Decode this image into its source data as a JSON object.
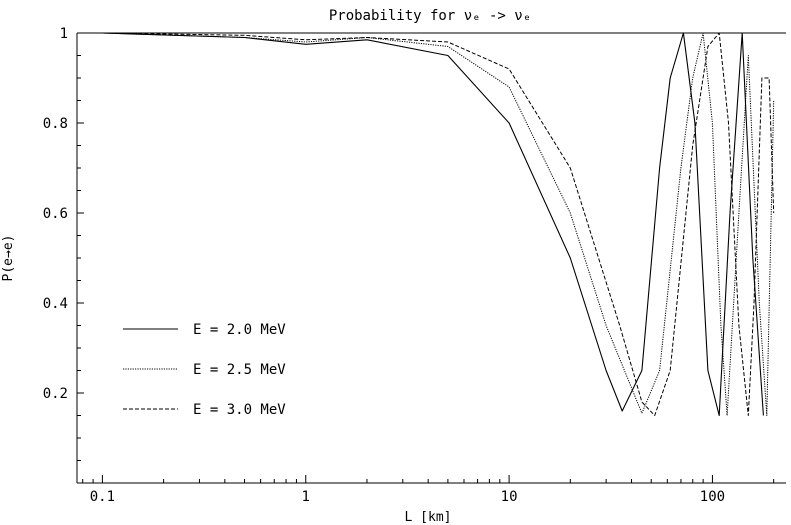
{
  "chart_data": {
    "type": "line",
    "title": "Probability for νₑ -> νₑ",
    "xlabel": "L [km]",
    "ylabel": "P(e→e)",
    "xscale": "log",
    "xlim": [
      0.075,
      230
    ],
    "ylim": [
      0.0,
      1.0
    ],
    "xticks": [
      0.1,
      1,
      10,
      100
    ],
    "xtick_labels": [
      "0.1",
      "1",
      "10",
      "100"
    ],
    "yticks": [
      0.2,
      0.4,
      0.6,
      0.8,
      1.0
    ],
    "ytick_labels": [
      "0.2",
      "0.4",
      "0.6",
      "0.8",
      "1"
    ],
    "grid": false,
    "legend_position": "lower-left",
    "series": [
      {
        "name": "E = 2.0 MeV",
        "energy_MeV": 2.0,
        "style": "solid",
        "x": [
          0.1,
          0.5,
          1.0,
          2.0,
          5.0,
          10.0,
          20.0,
          30.0,
          36.0,
          45.0,
          55.0,
          62.0,
          72.0,
          82.0,
          95.0,
          108.0,
          122.0,
          140.0,
          158.0,
          178.0
        ],
        "y": [
          1.0,
          0.99,
          0.975,
          0.985,
          0.95,
          0.8,
          0.5,
          0.25,
          0.16,
          0.25,
          0.7,
          0.9,
          1.0,
          0.8,
          0.25,
          0.15,
          0.6,
          1.0,
          0.5,
          0.15
        ]
      },
      {
        "name": "E = 2.5 MeV",
        "energy_MeV": 2.5,
        "style": "dotted",
        "x": [
          0.1,
          0.5,
          1.0,
          2.0,
          5.0,
          10.0,
          20.0,
          30.0,
          45.0,
          55.0,
          70.0,
          80.0,
          90.0,
          100.0,
          110.0,
          118.0,
          135.0,
          150.0,
          170.0,
          185.0,
          200.0
        ],
        "y": [
          1.0,
          0.99,
          0.98,
          0.99,
          0.97,
          0.88,
          0.6,
          0.35,
          0.155,
          0.25,
          0.7,
          0.9,
          1.0,
          0.8,
          0.35,
          0.15,
          0.6,
          0.95,
          0.4,
          0.15,
          0.85
        ]
      },
      {
        "name": "E = 3.0 MeV",
        "energy_MeV": 3.0,
        "style": "dashed",
        "x": [
          0.1,
          0.5,
          1.0,
          2.0,
          5.0,
          10.0,
          20.0,
          35.0,
          45.0,
          52.0,
          62.0,
          80.0,
          95.0,
          108.0,
          120.0,
          135.0,
          150.0,
          160.0,
          175.0,
          190.0,
          200.0
        ],
        "y": [
          1.0,
          0.995,
          0.985,
          0.99,
          0.98,
          0.92,
          0.7,
          0.35,
          0.18,
          0.15,
          0.25,
          0.75,
          0.97,
          1.0,
          0.8,
          0.35,
          0.15,
          0.4,
          0.9,
          0.9,
          0.6
        ]
      }
    ]
  }
}
